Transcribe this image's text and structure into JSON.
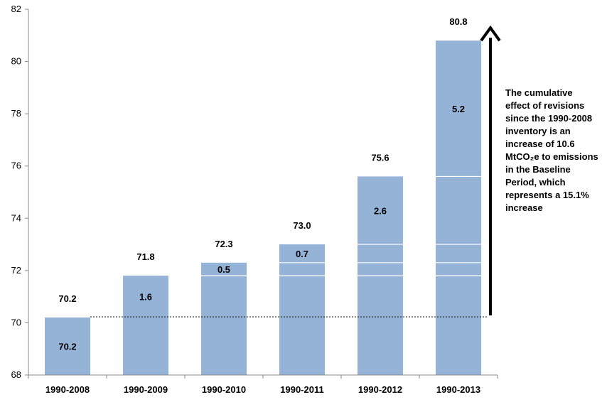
{
  "chart_data": {
    "type": "bar",
    "categories": [
      "1990-2008",
      "1990-2009",
      "1990-2010",
      "1990-2011",
      "1990-2012",
      "1990-2013"
    ],
    "totals": [
      70.2,
      71.8,
      72.3,
      73.0,
      75.6,
      80.8
    ],
    "total_labels": [
      "70.2",
      "71.8",
      "72.3",
      "73.0",
      "75.6",
      "80.8"
    ],
    "increments": [
      70.2,
      1.6,
      0.5,
      0.7,
      2.6,
      5.2
    ],
    "increment_labels": [
      "70.2",
      "1.6",
      "0.5",
      "0.7",
      "2.6",
      "5.2"
    ],
    "ylim": [
      68,
      82
    ],
    "yticks": [
      68,
      70,
      72,
      74,
      76,
      78,
      80,
      82
    ],
    "baseline": 70.2,
    "bar_color": "#95b3d7",
    "arrow": {
      "from": 70.2,
      "to": 80.8
    },
    "annotation": "The cumulative effect of revisions since the 1990-2008 inventory is an increase of 10.6 MtCO₂e to emissions in the Baseline Period, which represents a 15.1% increase",
    "grid": false,
    "legend": "none"
  }
}
